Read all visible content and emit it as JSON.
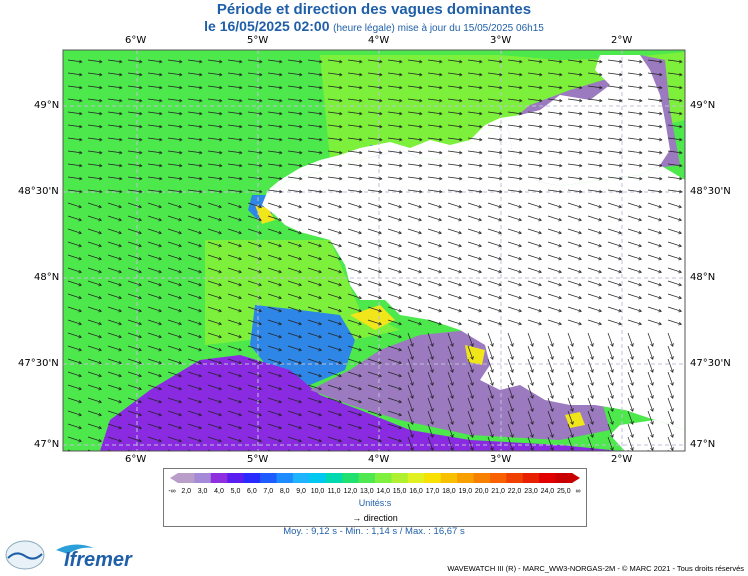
{
  "header": {
    "title": "Période et direction des vagues dominantes",
    "date": "le 16/05/2025 02:00",
    "update_note": "(heure légale) mise à jour du 15/05/2025 06h15"
  },
  "map": {
    "lon_ticks": [
      "6°W",
      "5°W",
      "4°W",
      "3°W",
      "2°W"
    ],
    "lat_ticks": [
      "49°N",
      "48°30'N",
      "48°N",
      "47°30'N",
      "47°N"
    ],
    "lon_range": [
      -6.6,
      -1.75
    ],
    "lat_range": [
      46.97,
      49.33
    ],
    "colors": {
      "land": "#ffffff",
      "sea_10s": "#2e86e6",
      "sea_13s": "#4ce84c",
      "sea_14s": "#7cf03a",
      "sea_4s": "#8a2be2",
      "sea_3s": "#9b7abf",
      "sea_16s": "#f0e61a",
      "grid": "#c0c0d8"
    }
  },
  "legend": {
    "min_label": "-∞",
    "max_label": "∞",
    "values": [
      "2,0",
      "3,0",
      "4,0",
      "5,0",
      "6,0",
      "7,0",
      "8,0",
      "9,0",
      "10,0",
      "11,0",
      "12,0",
      "13,0",
      "14,0",
      "15,0",
      "16,0",
      "17,0",
      "18,0",
      "19,0",
      "20,0",
      "21,0",
      "22,0",
      "23,0",
      "24,0",
      "25,0"
    ],
    "colors": [
      "#b89ec8",
      "#a58ad8",
      "#8e2fe0",
      "#5b1ef0",
      "#2a2aff",
      "#1e5cff",
      "#1e8cff",
      "#1eb4ff",
      "#00c8f0",
      "#00d8b0",
      "#20e070",
      "#50e850",
      "#80f040",
      "#b0f030",
      "#e0f020",
      "#f8e000",
      "#f8c000",
      "#f8a000",
      "#f88000",
      "#f86000",
      "#f04000",
      "#e82000",
      "#e00000",
      "#c80000"
    ],
    "unit": "Unités:s",
    "direction_label": "direction"
  },
  "stats": {
    "text": "Moy. : 9,12 s   -   Min. : 1,14 s / Max. : 16,67 s"
  },
  "credit": "WAVEWATCH III (R) - MARC_WW3-NORGAS-2M - © MARC 2021 - Tous droits réservés",
  "logos": {
    "lops": "LOPS",
    "ifremer": "Ifremer"
  }
}
